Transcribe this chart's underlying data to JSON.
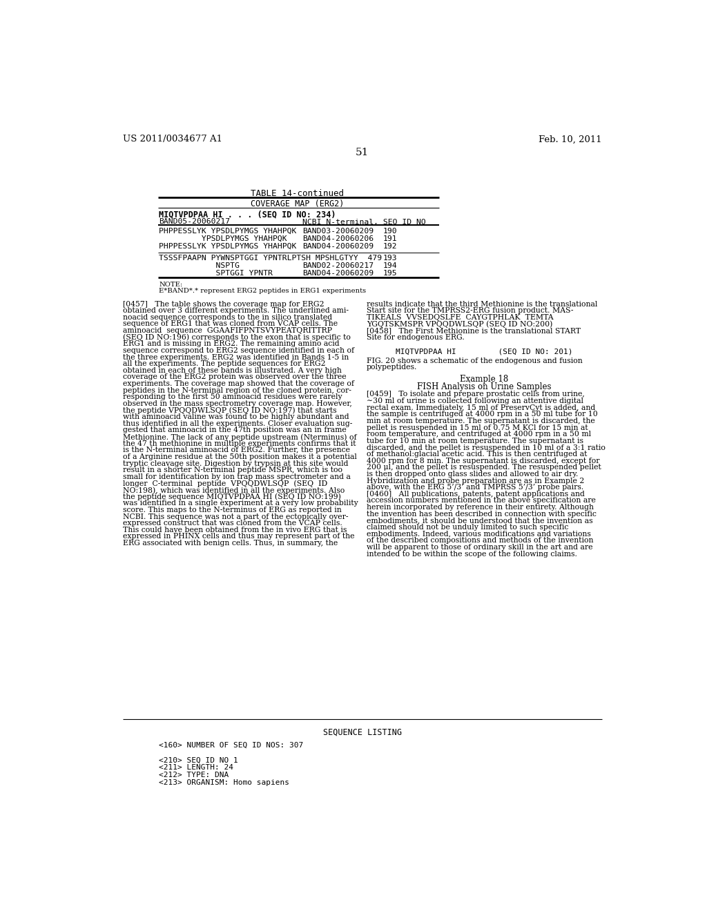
{
  "bg_color": "#ffffff",
  "header_left": "US 2011/0034677 A1",
  "header_right": "Feb. 10, 2011",
  "page_number": "51",
  "table_title": "TABLE 14-continued",
  "table_subtitle": "COVERAGE MAP (ERG2)",
  "note_line1": "NOTE:",
  "note_line2": "E*BAND*.* represent ERG2 peptides in ERG1 experiments",
  "seq_listing_title": "SEQUENCE LISTING",
  "seq_lines": [
    "<160> NUMBER OF SEQ ID NOS: 307",
    "",
    "<210> SEQ ID NO 1",
    "<211> LENGTH: 24",
    "<212> TYPE: DNA",
    "<213> ORGANISM: Homo sapiens"
  ],
  "left_body_lines": [
    "[0457]   The table shows the coverage map for ERG2",
    "obtained over 3 different experiments. The underlined ami-",
    "noacid sequence corresponds to the in silico translated",
    "sequence of ERG1 that was cloned from VCAP cells. The",
    "aminoacid  sequence  GGAAFIFPNTSVYPEATQRITTRP",
    "(SEQ ID NO:196) corresponds to the exon that is specific to",
    "ERG1 and is missing in ERG2. The remaining amino acid",
    "sequence correspond to ERG2 sequence identified in each of",
    "the three experiments. ERG2 was identified in Bands 1-5 in",
    "all the experiments. The peptide sequences for ERG2",
    "obtained in each of these bands is illustrated. A very high",
    "coverage of the ERG2 protein was observed over the three",
    "experiments. The coverage map showed that the coverage of",
    "peptides in the N-terminal region of the cloned protein, cor-",
    "responding to the first 50 aminoacid residues were rarely",
    "observed in the mass spectrometry coverage map. However,",
    "the peptide VPQQDWLSQP (SEQ ID NO:197) that starts",
    "with aminoacid valine was found to be highly abundant and",
    "thus identified in all the experiments. Closer evaluation sug-",
    "gested that aminoacid in the 47th position was an in frame",
    "Methionine. The lack of any peptide upstream (Nterminus) of",
    "the 47 th methionine in multiple experiments confirms that it",
    "is the N-terminal aminoacid of ERG2. Further, the presence",
    "of a Arginine residue at the 50th position makes it a potential",
    "tryptic cleavage site. Digestion by trypsin at this site would",
    "result in a shorter N-terminal peptide MSPR, which is too",
    "small for identification by ion trap mass spectrometer and a",
    "longer  C-terminal  peptide  VPQQDWLSQP  (SEQ  ID",
    "NO:198), which was identified in all the experiments. Also",
    "the peptide sequence MIQTVPDPAA HI (SEQ ID NO:199)",
    "was identified in a single experiment at a very low probability",
    "score. This maps to the N-terminus of ERG as reported in",
    "NCBI. This sequence was not a part of the ectopically over-",
    "expressed construct that was cloned from the VCAP cells.",
    "This could have been obtained from the in vivo ERG that is",
    "expressed in PHINX cells and thus may represent part of the",
    "ERG associated with benign cells. Thus, in summary, the"
  ],
  "right_body_lines_1": [
    "results indicate that the third Methionine is the translational",
    "Start site for the TMPRSS2-ERG fusion product. MAS-",
    "TIKEALS  VVSEDQSLFE  CAYGTPHLAK  TEMTA",
    "YGQTSKMSPR VPQQDWLSQP (SEQ ID NO:200)"
  ],
  "right_body_lines_2": [
    "[0458]   The First Methionine is the translational START",
    "Site for endogenous ERG."
  ],
  "right_mono_line": "MIQTVPDPAA HI         (SEQ ID NO: 201)",
  "right_body_lines_3": [
    "FIG. 20 shows a schematic of the endogenous and fusion",
    "polypeptides."
  ],
  "example18_title": "Example 18",
  "example18_sub": "FISH Analysis on Urine Samples",
  "right_body_lines_4": [
    "[0459]   To isolate and prepare prostatic cells from urine,",
    "∼30 ml of urine is collected following an attentive digital",
    "rectal exam. Immediately, 15 ml of PreservCyt is added, and",
    "the sample is centrifuged at 4000 rpm in a 50 ml tube for 10",
    "min at room temperature. The supernatant is discarded, the",
    "pellet is resuspended in 15 ml of 0.75 M KCl for 15 min at",
    "room temperature, and centrifuged at 4000 rpm in a 50 ml",
    "tube for 10 min at room temperature. The supernatant is",
    "discarded, and the pellet is resuspended in 10 ml of a 3:1 ratio",
    "of methanol:glacial acetic acid. This is then centrifuged at",
    "4000 rpm for 8 min. The supernatant is discarded, except for",
    "200 μl, and the pellet is resuspended. The resuspended pellet",
    "is then dropped onto glass slides and allowed to air dry.",
    "Hybridization and probe preparation are as in Example 2",
    "above, with the ERG 5’/3’ and TMPRSS 5’/3’ probe pairs."
  ],
  "right_body_lines_5": [
    "[0460]   All publications, patents, patent applications and",
    "accession numbers mentioned in the above specification are",
    "herein incorporated by reference in their entirety. Although",
    "the invention has been described in connection with specific",
    "embodiments, it should be understood that the invention as",
    "claimed should not be unduly limited to such specific",
    "embodiments. Indeed, various modifications and variations",
    "of the described compositions and methods of the invention",
    "will be apparent to those of ordinary skill in the art and are",
    "intended to be within the scope of the following claims."
  ]
}
